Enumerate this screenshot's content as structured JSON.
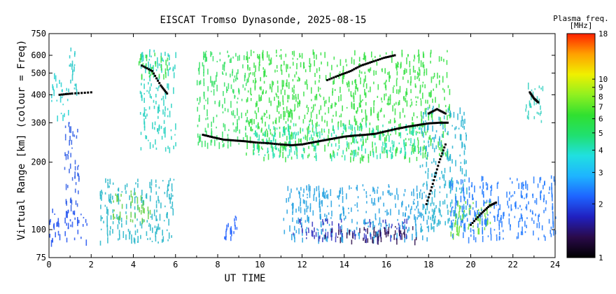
{
  "chart_data": {
    "type": "scatter",
    "title": "EISCAT Tromso Dynasonde, 2025-08-15",
    "xlabel": "UT TIME",
    "ylabel": "Virtual Range [km] (colour = Freq)",
    "xlim": [
      0,
      24
    ],
    "ylim": [
      75,
      750
    ],
    "y_scale": "log",
    "x_ticks": [
      "0",
      "2",
      "4",
      "6",
      "8",
      "10",
      "12",
      "14",
      "16",
      "18",
      "20",
      "22",
      "24"
    ],
    "y_ticks": [
      "75",
      "100",
      "200",
      "300",
      "400",
      "500",
      "600",
      "750"
    ],
    "colorbar": {
      "label_line1": "Plasma freq.",
      "label_line2": "[MHz]",
      "scale": "log",
      "range": [
        1,
        18
      ],
      "ticks": [
        "1",
        "2",
        "3",
        "4",
        "5",
        "6",
        "7",
        "8",
        "9",
        "10",
        "18"
      ],
      "colors": [
        "#000000",
        "#2a0a4a",
        "#2020c0",
        "#1e64ff",
        "#1eb4ff",
        "#20e0e0",
        "#20e070",
        "#30e030",
        "#90f020",
        "#f0f000",
        "#ffa000",
        "#ff2000"
      ]
    },
    "series": [
      {
        "kind": "trace",
        "color": "#000000",
        "points": [
          [
            0.5,
            400
          ],
          [
            1.1,
            405
          ],
          [
            2.0,
            410
          ]
        ]
      },
      {
        "kind": "trace",
        "color": "#000000",
        "points": [
          [
            4.4,
            540
          ],
          [
            4.9,
            510
          ],
          [
            5.3,
            440
          ],
          [
            5.6,
            405
          ]
        ]
      },
      {
        "kind": "trace",
        "color": "#000000",
        "points": [
          [
            7.3,
            265
          ],
          [
            7.8,
            258
          ],
          [
            8.3,
            252
          ],
          [
            8.8,
            250
          ],
          [
            9.3,
            248
          ],
          [
            9.8,
            245
          ],
          [
            10.4,
            243
          ],
          [
            11.0,
            240
          ],
          [
            11.5,
            238
          ],
          [
            12.0,
            240
          ],
          [
            12.5,
            245
          ],
          [
            13.0,
            250
          ],
          [
            13.5,
            255
          ],
          [
            14.0,
            260
          ],
          [
            14.5,
            263
          ],
          [
            15.0,
            265
          ],
          [
            15.5,
            268
          ],
          [
            16.0,
            275
          ],
          [
            16.5,
            282
          ],
          [
            17.0,
            288
          ],
          [
            17.5,
            293
          ],
          [
            18.0,
            298
          ],
          [
            18.5,
            300
          ],
          [
            18.9,
            300
          ]
        ]
      },
      {
        "kind": "trace",
        "color": "#000000",
        "points": [
          [
            13.2,
            465
          ],
          [
            13.8,
            490
          ],
          [
            14.3,
            510
          ],
          [
            14.8,
            540
          ],
          [
            15.3,
            560
          ],
          [
            15.9,
            585
          ],
          [
            16.4,
            600
          ]
        ]
      },
      {
        "kind": "trace",
        "color": "#000000",
        "points": [
          [
            18.0,
            330
          ],
          [
            18.4,
            345
          ],
          [
            18.8,
            330
          ]
        ]
      },
      {
        "kind": "trace",
        "color": "#000000",
        "points": [
          [
            20.0,
            105
          ],
          [
            20.5,
            118
          ],
          [
            20.9,
            128
          ],
          [
            21.2,
            132
          ]
        ]
      },
      {
        "kind": "trace",
        "color": "#000000",
        "points": [
          [
            22.8,
            410
          ],
          [
            23.0,
            385
          ],
          [
            23.2,
            370
          ]
        ]
      },
      {
        "kind": "trace",
        "color": "#000000",
        "points": [
          [
            17.9,
            130
          ],
          [
            18.2,
            160
          ],
          [
            18.5,
            200
          ],
          [
            18.8,
            240
          ]
        ]
      }
    ],
    "regions": [
      {
        "x": [
          0.0,
          1.8
        ],
        "y": [
          88,
          125
        ],
        "color": "#1e50f0"
      },
      {
        "x": [
          0.7,
          1.4
        ],
        "y": [
          125,
          310
        ],
        "color": "#2a5ae6"
      },
      {
        "x": [
          0.1,
          0.9
        ],
        "y": [
          320,
          500
        ],
        "color": "#20d0d0"
      },
      {
        "x": [
          0.9,
          1.3
        ],
        "y": [
          380,
          650
        ],
        "color": "#20c8c8"
      },
      {
        "x": [
          2.4,
          5.9
        ],
        "y": [
          88,
          170
        ],
        "color": "#20b4c8"
      },
      {
        "x": [
          3.0,
          4.8
        ],
        "y": [
          110,
          150
        ],
        "color": "#60d040"
      },
      {
        "x": [
          4.3,
          6.0
        ],
        "y": [
          230,
          640
        ],
        "color": "#20d0c0"
      },
      {
        "x": [
          4.2,
          5.6
        ],
        "y": [
          480,
          620
        ],
        "color": "#30e040"
      },
      {
        "x": [
          7.0,
          9.4
        ],
        "y": [
          240,
          630
        ],
        "color": "#30e060"
      },
      {
        "x": [
          8.3,
          8.9
        ],
        "y": [
          92,
          118
        ],
        "color": "#2060ff"
      },
      {
        "x": [
          9.3,
          19.0
        ],
        "y": [
          210,
          640
        ],
        "color": "#30e040"
      },
      {
        "x": [
          9.5,
          17.8
        ],
        "y": [
          215,
          300
        ],
        "color": "#20e0b0"
      },
      {
        "x": [
          11.1,
          18.0
        ],
        "y": [
          92,
          160
        ],
        "color": "#20a0e0"
      },
      {
        "x": [
          11.5,
          17.0
        ],
        "y": [
          92,
          112
        ],
        "color": "#3030c0"
      },
      {
        "x": [
          13.0,
          17.5
        ],
        "y": [
          90,
          104
        ],
        "color": "#2a0a4a"
      },
      {
        "x": [
          17.5,
          19.8
        ],
        "y": [
          100,
          360
        ],
        "color": "#20b0d0"
      },
      {
        "x": [
          19.0,
          21.0
        ],
        "y": [
          95,
          135
        ],
        "color": "#60e030"
      },
      {
        "x": [
          19.0,
          24.0
        ],
        "y": [
          92,
          175
        ],
        "color": "#1e78ff"
      },
      {
        "x": [
          22.5,
          23.4
        ],
        "y": [
          300,
          470
        ],
        "color": "#30d0c0"
      }
    ]
  }
}
